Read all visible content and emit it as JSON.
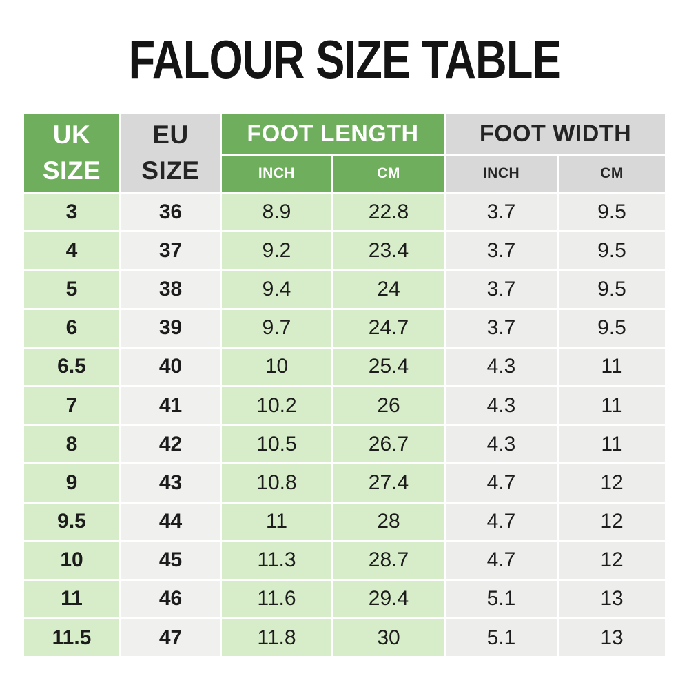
{
  "title": "FALOUR SIZE TABLE",
  "header": {
    "uk": {
      "line1": "UK",
      "line2": "SIZE"
    },
    "eu": {
      "line1": "EU",
      "line2": "SIZE"
    },
    "foot_length": {
      "label": "FOOT LENGTH",
      "sub_inch": "INCH",
      "sub_cm": "CM"
    },
    "foot_width": {
      "label": "FOOT WIDTH",
      "sub_inch": "INCH",
      "sub_cm": "CM"
    }
  },
  "chart_data": {
    "type": "table",
    "title": "FALOUR SIZE TABLE",
    "column_groups": [
      "UK SIZE",
      "EU SIZE",
      "FOOT LENGTH",
      "FOOT WIDTH"
    ],
    "columns": [
      "UK SIZE",
      "EU SIZE",
      "FOOT LENGTH INCH",
      "FOOT LENGTH CM",
      "FOOT WIDTH INCH",
      "FOOT WIDTH CM"
    ],
    "rows": [
      [
        "3",
        "36",
        "8.9",
        "22.8",
        "3.7",
        "9.5"
      ],
      [
        "4",
        "37",
        "9.2",
        "23.4",
        "3.7",
        "9.5"
      ],
      [
        "5",
        "38",
        "9.4",
        "24",
        "3.7",
        "9.5"
      ],
      [
        "6",
        "39",
        "9.7",
        "24.7",
        "3.7",
        "9.5"
      ],
      [
        "6.5",
        "40",
        "10",
        "25.4",
        "4.3",
        "11"
      ],
      [
        "7",
        "41",
        "10.2",
        "26",
        "4.3",
        "11"
      ],
      [
        "8",
        "42",
        "10.5",
        "26.7",
        "4.3",
        "11"
      ],
      [
        "9",
        "43",
        "10.8",
        "27.4",
        "4.7",
        "12"
      ],
      [
        "9.5",
        "44",
        "11",
        "28",
        "4.7",
        "12"
      ],
      [
        "10",
        "45",
        "11.3",
        "28.7",
        "4.7",
        "12"
      ],
      [
        "11",
        "46",
        "11.6",
        "29.4",
        "5.1",
        "13"
      ],
      [
        "11.5",
        "47",
        "11.8",
        "30",
        "5.1",
        "13"
      ]
    ]
  },
  "colors": {
    "header_green": "#6FAE5C",
    "header_gray": "#D8D8D8",
    "body_green": "#D7EDC9",
    "body_gray_eu": "#F0F0EF",
    "body_gray": "#EDEDEC",
    "text_dark": "#1C1C1C",
    "header_text_light": "#FFFFFF",
    "header_text_dark": "#242424"
  }
}
